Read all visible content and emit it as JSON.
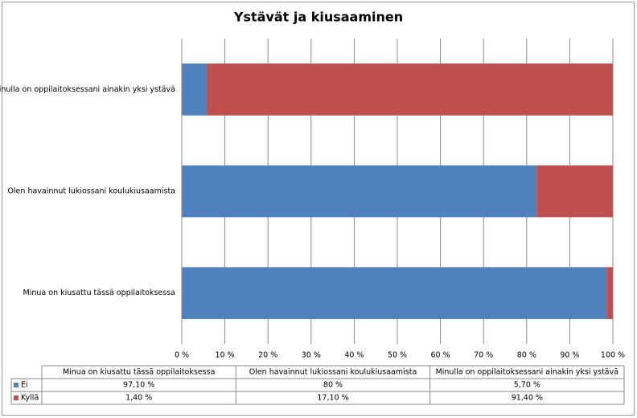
{
  "chart_data": {
    "type": "stacked_bar_100",
    "orientation": "horizontal",
    "title": "Ystävät ja kiusaaminen",
    "categories": [
      "Minua on kiusattu tässä oppilaitoksessa",
      "Olen havainnut lukiossani koulukiusaamista",
      "Minulla on oppilaitoksessani ainakin yksi ystävä"
    ],
    "series": [
      {
        "name": "Ei",
        "color": "#4f81bd",
        "values": [
          97.1,
          80,
          5.7
        ],
        "value_labels": [
          "97,10 %",
          "80 %",
          "5,70 %"
        ]
      },
      {
        "name": "Kyllä",
        "color": "#c0504d",
        "values": [
          1.4,
          17.1,
          91.4
        ],
        "value_labels": [
          "1,40 %",
          "17,10 %",
          "91,40 %"
        ]
      }
    ],
    "xlim": [
      0,
      100
    ],
    "xticks": [
      {
        "value": 0,
        "label": "0 %"
      },
      {
        "value": 10,
        "label": "10 %"
      },
      {
        "value": 20,
        "label": "20 %"
      },
      {
        "value": 30,
        "label": "30 %"
      },
      {
        "value": 40,
        "label": "40 %"
      },
      {
        "value": 50,
        "label": "50 %"
      },
      {
        "value": 60,
        "label": "60 %"
      },
      {
        "value": 70,
        "label": "70 %"
      },
      {
        "value": 80,
        "label": "80 %"
      },
      {
        "value": 90,
        "label": "90 %"
      },
      {
        "value": 100,
        "label": "100 %"
      }
    ],
    "grid": true,
    "data_table": true
  }
}
